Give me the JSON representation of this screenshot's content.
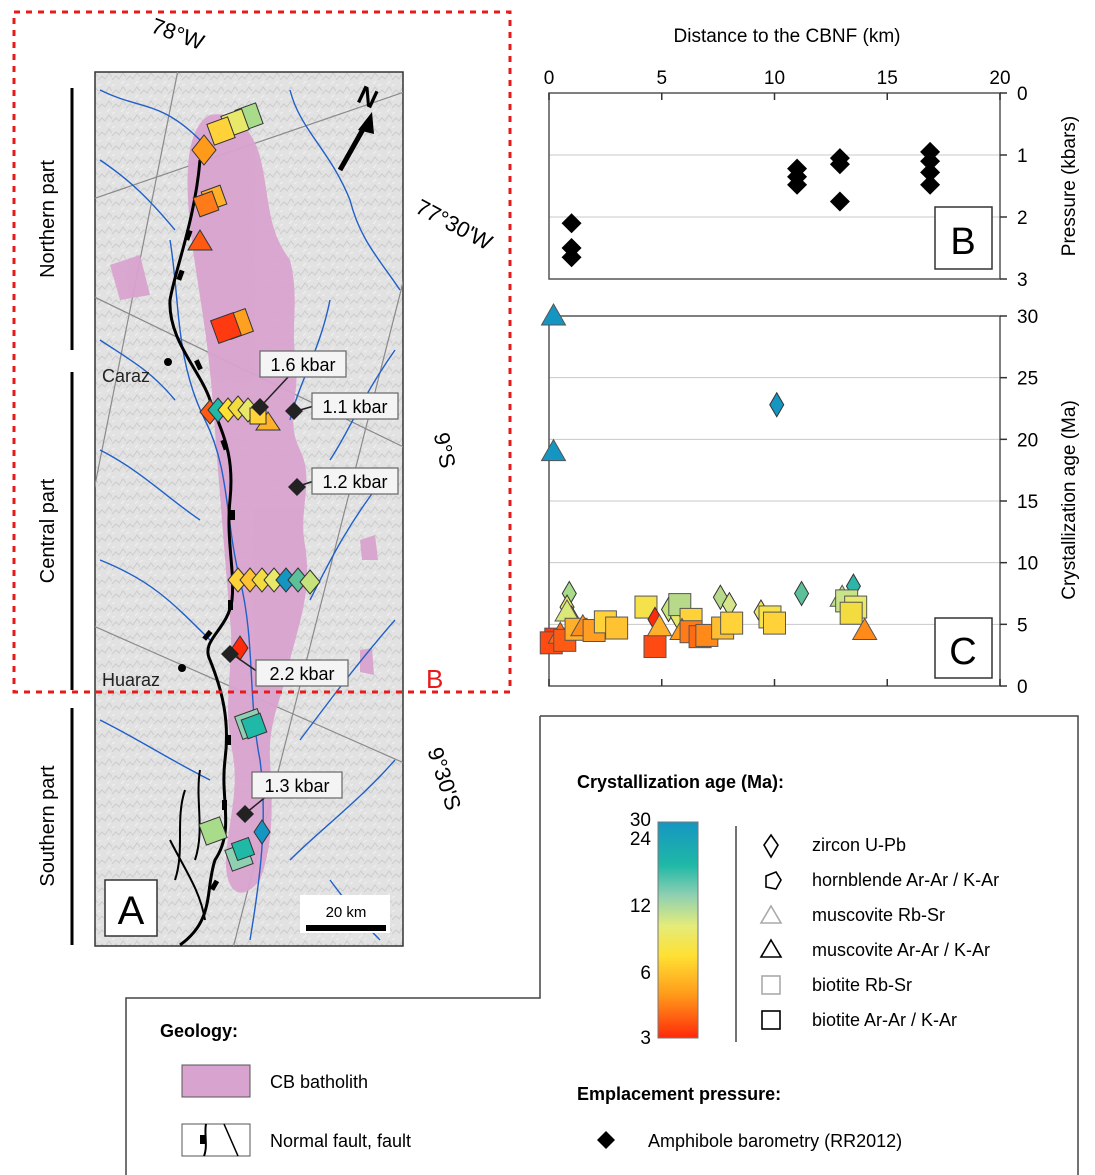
{
  "map": {
    "panel_label": "A",
    "red_box_label": "B",
    "part_labels": [
      "Northern part",
      "Central part",
      "Southern part"
    ],
    "longitudes": [
      "78°W",
      "77°30'W"
    ],
    "latitudes": [
      "9°S",
      "9°30'S"
    ],
    "north_label": "N",
    "towns": [
      "Caraz",
      "Huaraz"
    ],
    "scale_label": "20 km",
    "pressure_callouts": [
      "1.6 kbar",
      "1.1 kbar",
      "1.2 kbar",
      "2.2 kbar",
      "1.3 kbar"
    ]
  },
  "legend": {
    "age_title": "Crystallization age (Ma):",
    "colorbar_ticks": [
      "30",
      "24",
      "12",
      "6",
      "3"
    ],
    "colorbar_stops": [
      "#ff2a0a",
      "#ff9a1a",
      "#ffe033",
      "#e4ec7a",
      "#8fd0b2",
      "#20b8a6",
      "#1596c2"
    ],
    "symbols": [
      "zircon U-Pb",
      "hornblende Ar-Ar / K-Ar",
      "muscovite Rb-Sr",
      "muscovite Ar-Ar / K-Ar",
      "biotite Rb-Sr",
      "biotite Ar-Ar / K-Ar"
    ],
    "geology_title": "Geology:",
    "geology_items": [
      "CB batholith",
      "Normal fault, fault"
    ],
    "pressure_title": "Emplacement pressure:",
    "pressure_item": "Amphibole barometry (RR2012)",
    "batholith_color": "#d9a3cf"
  },
  "chart_data": [
    {
      "type": "scatter",
      "panel": "B",
      "xlabel": "Distance to the CBNF (km)",
      "ylabel": "Pressure (kbars)",
      "xlim": [
        0,
        20
      ],
      "ylim": [
        3,
        0
      ],
      "xticks": [
        0,
        5,
        10,
        15,
        20
      ],
      "yticks": [
        0,
        1,
        2,
        3
      ],
      "grid": true,
      "series": [
        {
          "name": "Amphibole barometry (RR2012)",
          "marker": "diamond",
          "color": "#000000",
          "x": [
            1.0,
            1.0,
            1.0,
            11.0,
            11.0,
            11.0,
            12.9,
            12.9,
            12.9,
            16.9,
            16.9,
            16.9,
            16.9
          ],
          "y": [
            2.1,
            2.5,
            2.65,
            1.22,
            1.35,
            1.48,
            1.05,
            1.15,
            1.75,
            0.95,
            1.1,
            1.28,
            1.48
          ]
        }
      ]
    },
    {
      "type": "scatter",
      "panel": "C",
      "ylabel": "Crystallization age (Ma)",
      "xlim": [
        0,
        20
      ],
      "ylim": [
        0,
        30
      ],
      "yticks": [
        0,
        5,
        10,
        15,
        20,
        25,
        30
      ],
      "grid": true,
      "points": [
        {
          "x": 0.2,
          "y": 30,
          "m": "tri",
          "c": "#1596c2"
        },
        {
          "x": 0.2,
          "y": 19,
          "m": "tri",
          "c": "#1596c2"
        },
        {
          "x": 10.1,
          "y": 22.8,
          "m": "dia",
          "c": "#1596c2"
        },
        {
          "x": 0.3,
          "y": 3.8,
          "m": "sq",
          "c": "#ff3a10"
        },
        {
          "x": 0.1,
          "y": 3.5,
          "m": "sq",
          "c": "#ff4a12"
        },
        {
          "x": 0.5,
          "y": 4.2,
          "m": "tri",
          "c": "#ff6a14"
        },
        {
          "x": 0.7,
          "y": 3.7,
          "m": "sq",
          "c": "#ff5a14"
        },
        {
          "x": 0.9,
          "y": 7.5,
          "m": "dia",
          "c": "#a8dc8a"
        },
        {
          "x": 0.8,
          "y": 6.4,
          "m": "dia",
          "c": "#e8e96a"
        },
        {
          "x": 1.0,
          "y": 5.5,
          "m": "dia",
          "c": "#f2dc40"
        },
        {
          "x": 0.8,
          "y": 6.0,
          "m": "tri",
          "c": "#d9e878"
        },
        {
          "x": 1.2,
          "y": 4.6,
          "m": "sq",
          "c": "#ffb02a"
        },
        {
          "x": 1.5,
          "y": 4.8,
          "m": "tri",
          "c": "#ff8d1a"
        },
        {
          "x": 2.0,
          "y": 4.5,
          "m": "sq",
          "c": "#ff9e22"
        },
        {
          "x": 2.5,
          "y": 5.2,
          "m": "sq",
          "c": "#ffd23a"
        },
        {
          "x": 3.0,
          "y": 4.7,
          "m": "sq",
          "c": "#ffc232"
        },
        {
          "x": 4.3,
          "y": 6.4,
          "m": "sq",
          "c": "#f5e14a"
        },
        {
          "x": 4.7,
          "y": 5.4,
          "m": "dia",
          "c": "#ff2a0a"
        },
        {
          "x": 4.7,
          "y": 3.2,
          "m": "sq",
          "c": "#ff4a14"
        },
        {
          "x": 4.9,
          "y": 4.8,
          "m": "tri",
          "c": "#ffb02a"
        },
        {
          "x": 5.3,
          "y": 6.2,
          "m": "dia",
          "c": "#c6e27a"
        },
        {
          "x": 5.7,
          "y": 5.6,
          "m": "dia",
          "c": "#e8e96a"
        },
        {
          "x": 6.0,
          "y": 6.0,
          "m": "dia",
          "c": "#f2dc40"
        },
        {
          "x": 5.8,
          "y": 6.6,
          "m": "sq",
          "c": "#b6da8a"
        },
        {
          "x": 6.3,
          "y": 5.4,
          "m": "sq",
          "c": "#ffd23a"
        },
        {
          "x": 5.9,
          "y": 4.5,
          "m": "tri",
          "c": "#ff9a1a"
        },
        {
          "x": 6.3,
          "y": 4.4,
          "m": "sq",
          "c": "#ff7a18"
        },
        {
          "x": 6.7,
          "y": 4.0,
          "m": "sq",
          "c": "#ff6a14"
        },
        {
          "x": 7.0,
          "y": 4.1,
          "m": "sq",
          "c": "#ff8a1a"
        },
        {
          "x": 7.6,
          "y": 7.2,
          "m": "dia",
          "c": "#b6da8a"
        },
        {
          "x": 8.0,
          "y": 6.6,
          "m": "dia",
          "c": "#d6e48a"
        },
        {
          "x": 7.7,
          "y": 4.7,
          "m": "sq",
          "c": "#ffbe30"
        },
        {
          "x": 8.1,
          "y": 5.1,
          "m": "sq",
          "c": "#ffd23a"
        },
        {
          "x": 9.4,
          "y": 6.0,
          "m": "dia",
          "c": "#f3e560"
        },
        {
          "x": 9.8,
          "y": 5.6,
          "m": "sq",
          "c": "#f5e14a"
        },
        {
          "x": 10.0,
          "y": 5.1,
          "m": "sq",
          "c": "#ffd23a"
        },
        {
          "x": 11.2,
          "y": 7.5,
          "m": "dia",
          "c": "#5cc09a"
        },
        {
          "x": 13.0,
          "y": 7.2,
          "m": "tri",
          "c": "#bfe08a"
        },
        {
          "x": 13.5,
          "y": 8.1,
          "m": "dia",
          "c": "#2fb5a8"
        },
        {
          "x": 13.2,
          "y": 6.9,
          "m": "sq",
          "c": "#c9e488"
        },
        {
          "x": 13.6,
          "y": 6.4,
          "m": "sq",
          "c": "#e8e96a"
        },
        {
          "x": 13.4,
          "y": 5.9,
          "m": "sq",
          "c": "#f2dc40"
        },
        {
          "x": 14.0,
          "y": 4.5,
          "m": "tri",
          "c": "#ff8a1a"
        }
      ]
    }
  ]
}
